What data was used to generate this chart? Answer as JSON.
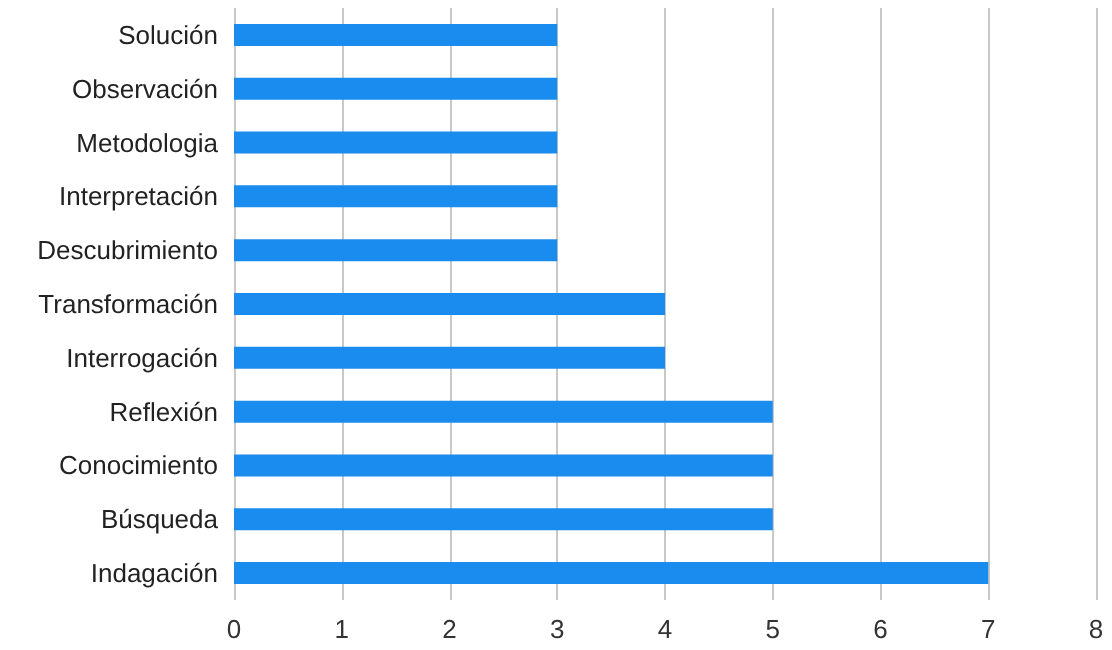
{
  "chart_data": {
    "type": "bar",
    "orientation": "horizontal",
    "categories": [
      "Solución",
      "Observación",
      "Metodologia",
      "Interpretación",
      "Descubrimiento",
      "Transformación",
      "Interrogación",
      "Reflexión",
      "Conocimiento",
      "Búsqueda",
      "Indagación"
    ],
    "values": [
      3,
      3,
      3,
      3,
      3,
      4,
      4,
      5,
      5,
      5,
      7
    ],
    "color": "#1a8cf0",
    "xlim": [
      0,
      8
    ],
    "xticks": [
      0,
      1,
      2,
      3,
      4,
      5,
      6,
      7,
      8
    ],
    "grid": "x"
  }
}
